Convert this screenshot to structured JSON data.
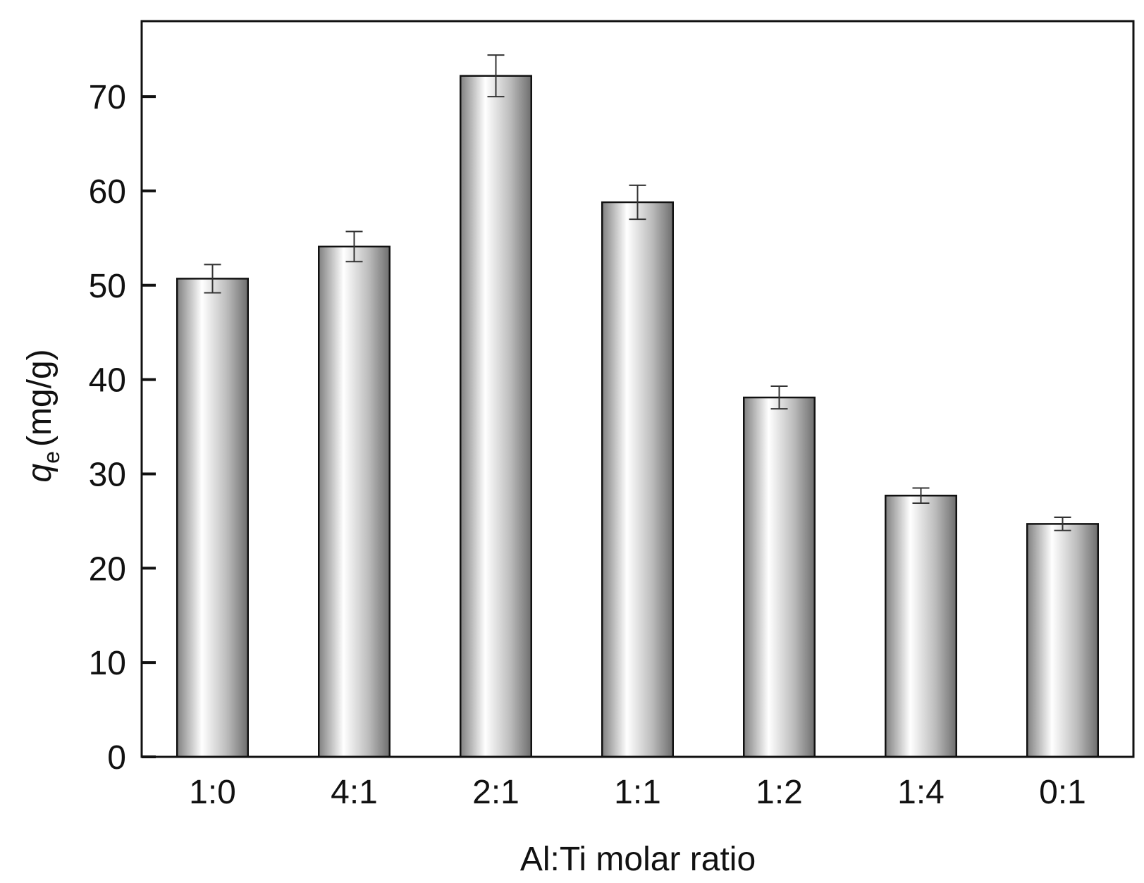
{
  "chart_data": {
    "type": "bar",
    "title": "",
    "xlabel": "Al:Ti molar ratio",
    "ylabel_main": "q",
    "ylabel_sub": "e",
    "ylabel_unit": "(mg/g)",
    "categories": [
      "1:0",
      "4:1",
      "2:1",
      "1:1",
      "1:2",
      "1:4",
      "0:1"
    ],
    "values": [
      50.7,
      54.1,
      72.2,
      58.8,
      38.1,
      27.7,
      24.7
    ],
    "errors": [
      1.5,
      1.6,
      2.2,
      1.8,
      1.2,
      0.8,
      0.7
    ],
    "ylim": [
      0,
      78
    ],
    "yticks": [
      0,
      10,
      20,
      30,
      40,
      50,
      60,
      70
    ],
    "grid": false,
    "legend": "none",
    "colors": {
      "bar_dark": "#7a7a7a",
      "bar_light": "#ffffff",
      "axis": "#111111"
    }
  }
}
